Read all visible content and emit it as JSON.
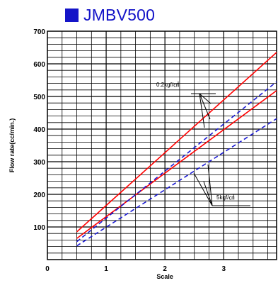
{
  "header": {
    "title": "JMBV500",
    "title_color": "#1414c8",
    "square_color": "#1414c8"
  },
  "chart_data": {
    "type": "line",
    "title": "JMBV500",
    "xlabel": "Scale",
    "ylabel": "Flow rate(cc/min.)",
    "xlim": [
      0,
      3.9
    ],
    "ylim": [
      0,
      700
    ],
    "x_ticks": [
      "0",
      "1",
      "2",
      "3"
    ],
    "y_ticks": [
      "100",
      "200",
      "300",
      "400",
      "500",
      "600",
      "700"
    ],
    "grid": true,
    "series": [
      {
        "color": "#ff0000",
        "dash": "solid",
        "x": [
          0.5,
          3.9
        ],
        "y": [
          85,
          635
        ]
      },
      {
        "color": "#ff0000",
        "dash": "solid",
        "x": [
          0.5,
          3.9
        ],
        "y": [
          65,
          518
        ]
      },
      {
        "color": "#1a1ad2",
        "dash": "dashed",
        "x": [
          0.5,
          3.9
        ],
        "y": [
          55,
          545
        ]
      },
      {
        "color": "#1a1ad2",
        "dash": "dashed",
        "x": [
          0.5,
          3.9
        ],
        "y": [
          42,
          432
        ]
      }
    ],
    "annotations": [
      {
        "text": "0.2kgf/㎠"
      },
      {
        "text": "5kgf/㎠"
      }
    ]
  }
}
